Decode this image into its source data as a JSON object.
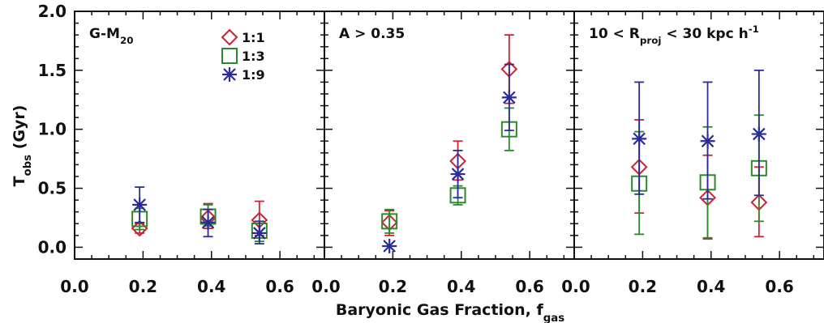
{
  "chart_data": {
    "type": "scatter",
    "ylabel_main": "T",
    "ylabel_sub": "obs",
    "ylabel_unit": "(Gyr)",
    "xlabel_main": "Baryonic Gas Fraction, f",
    "xlabel_sub": "gas",
    "ylim": [
      -0.1,
      2.0
    ],
    "yticks": [
      "0.0",
      "0.5",
      "1.0",
      "1.5",
      "2.0"
    ],
    "xlim": [
      0.0,
      0.73
    ],
    "xticks": [
      "0.0",
      "0.2",
      "0.4",
      "0.6"
    ],
    "legend": {
      "placement": "top-center-of-first-panel",
      "entries": [
        {
          "label": "1:1",
          "marker": "diamond",
          "color": "#cc2233"
        },
        {
          "label": "1:3",
          "marker": "square",
          "color": "#2a8a2a"
        },
        {
          "label": "1:9",
          "marker": "asterisk",
          "color": "#2a2a9a"
        }
      ]
    },
    "panels": [
      {
        "title": "G-M",
        "title_sub": "20",
        "series": [
          {
            "name": "1:1",
            "points": [
              {
                "x": 0.19,
                "y": 0.16,
                "lo": 0.12,
                "hi": 0.2
              },
              {
                "x": 0.39,
                "y": 0.25,
                "lo": 0.16,
                "hi": 0.37
              },
              {
                "x": 0.54,
                "y": 0.23,
                "lo": 0.1,
                "hi": 0.39
              }
            ]
          },
          {
            "name": "1:3",
            "points": [
              {
                "x": 0.19,
                "y": 0.24,
                "lo": 0.15,
                "hi": 0.33
              },
              {
                "x": 0.39,
                "y": 0.26,
                "lo": 0.18,
                "hi": 0.36
              },
              {
                "x": 0.54,
                "y": 0.14,
                "lo": 0.05,
                "hi": 0.22
              }
            ]
          },
          {
            "name": "1:9",
            "points": [
              {
                "x": 0.19,
                "y": 0.36,
                "lo": 0.21,
                "hi": 0.51
              },
              {
                "x": 0.39,
                "y": 0.21,
                "lo": 0.09,
                "hi": 0.32
              },
              {
                "x": 0.54,
                "y": 0.12,
                "lo": 0.03,
                "hi": 0.22
              }
            ]
          }
        ]
      },
      {
        "title": "A > 0.35",
        "title_sub": "",
        "series": [
          {
            "name": "1:1",
            "points": [
              {
                "x": 0.19,
                "y": 0.21,
                "lo": 0.1,
                "hi": 0.31
              },
              {
                "x": 0.39,
                "y": 0.73,
                "lo": 0.57,
                "hi": 0.9
              },
              {
                "x": 0.54,
                "y": 1.51,
                "lo": 1.22,
                "hi": 1.8
              }
            ]
          },
          {
            "name": "1:3",
            "points": [
              {
                "x": 0.19,
                "y": 0.22,
                "lo": 0.12,
                "hi": 0.32
              },
              {
                "x": 0.39,
                "y": 0.44,
                "lo": 0.36,
                "hi": 0.52
              },
              {
                "x": 0.54,
                "y": 1.0,
                "lo": 0.82,
                "hi": 1.18
              }
            ]
          },
          {
            "name": "1:9",
            "points": [
              {
                "x": 0.19,
                "y": 0.01,
                "lo": 0.01,
                "hi": 0.01
              },
              {
                "x": 0.39,
                "y": 0.62,
                "lo": 0.42,
                "hi": 0.82
              },
              {
                "x": 0.54,
                "y": 1.27,
                "lo": 0.99,
                "hi": 1.55
              }
            ]
          }
        ]
      },
      {
        "title": "10 < R",
        "title_sub": "proj",
        "title_rest": " < 30 kpc h",
        "title_sup": "-1",
        "series": [
          {
            "name": "1:1",
            "points": [
              {
                "x": 0.19,
                "y": 0.68,
                "lo": 0.29,
                "hi": 1.08
              },
              {
                "x": 0.39,
                "y": 0.42,
                "lo": 0.07,
                "hi": 0.78
              },
              {
                "x": 0.54,
                "y": 0.38,
                "lo": 0.09,
                "hi": 0.68
              }
            ]
          },
          {
            "name": "1:3",
            "points": [
              {
                "x": 0.19,
                "y": 0.54,
                "lo": 0.11,
                "hi": 0.98
              },
              {
                "x": 0.39,
                "y": 0.55,
                "lo": 0.08,
                "hi": 1.02
              },
              {
                "x": 0.54,
                "y": 0.67,
                "lo": 0.22,
                "hi": 1.12
              }
            ]
          },
          {
            "name": "1:9",
            "points": [
              {
                "x": 0.19,
                "y": 0.92,
                "lo": 0.45,
                "hi": 1.4
              },
              {
                "x": 0.39,
                "y": 0.9,
                "lo": 0.41,
                "hi": 1.4
              },
              {
                "x": 0.54,
                "y": 0.96,
                "lo": 0.44,
                "hi": 1.5
              }
            ]
          }
        ]
      }
    ]
  }
}
